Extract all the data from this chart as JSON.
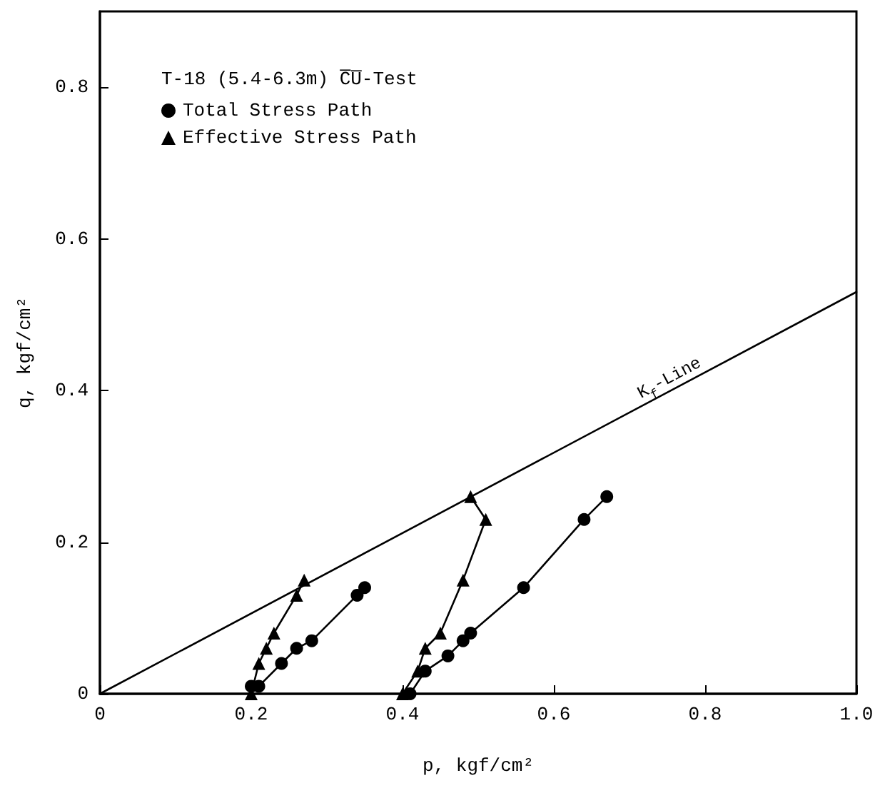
{
  "chart_data": {
    "type": "line",
    "title": "T-18 (5.4-6.3m) C̅U̅-Test",
    "xlabel": "p, kgf/cm²",
    "ylabel": "q, kgf/cm²",
    "xlim": [
      0,
      1.0
    ],
    "xticks": [
      0,
      0.2,
      0.4,
      0.6,
      0.8,
      {
        "value": 1.0,
        "label": "1.0"
      }
    ],
    "ylim": [
      0,
      0.9
    ],
    "yticks": [
      0,
      0.2,
      0.4,
      0.6,
      0.8
    ],
    "grid": false,
    "legend": "top left",
    "line_style": "solid",
    "series": [
      {
        "name": "Total Stress Path",
        "color": "#000000",
        "marker": "circle",
        "x": [
          0.2,
          0.21,
          0.24,
          0.26,
          0.28,
          0.34,
          0.35,
          null,
          0.41,
          0.43,
          0.46,
          0.48,
          0.49,
          0.56,
          0.64,
          0.67
        ],
        "values": [
          0.01,
          0.01,
          0.04,
          0.06,
          0.07,
          0.13,
          0.14,
          null,
          0,
          0.03,
          0.05,
          0.07,
          0.08,
          0.14,
          0.23,
          0.26
        ]
      },
      {
        "name": "Effective Stress Path",
        "color": "#000000",
        "marker": "triangle",
        "x": [
          0.2,
          0.21,
          0.22,
          0.23,
          0.26,
          0.27,
          null,
          0.4,
          0.42,
          0.43,
          0.45,
          0.48,
          0.51,
          0.49
        ],
        "values": [
          0,
          0.04,
          0.06,
          0.08,
          0.13,
          0.15,
          null,
          0,
          0.03,
          0.06,
          0.08,
          0.15,
          0.23,
          0.26
        ]
      },
      {
        "type": "line",
        "color": "#000000",
        "marker": "none",
        "x": [
          0,
          1.0
        ],
        "values": [
          0,
          0.53
        ]
      }
    ],
    "annotations": [
      "K$_{f}$-Line"
    ]
  }
}
